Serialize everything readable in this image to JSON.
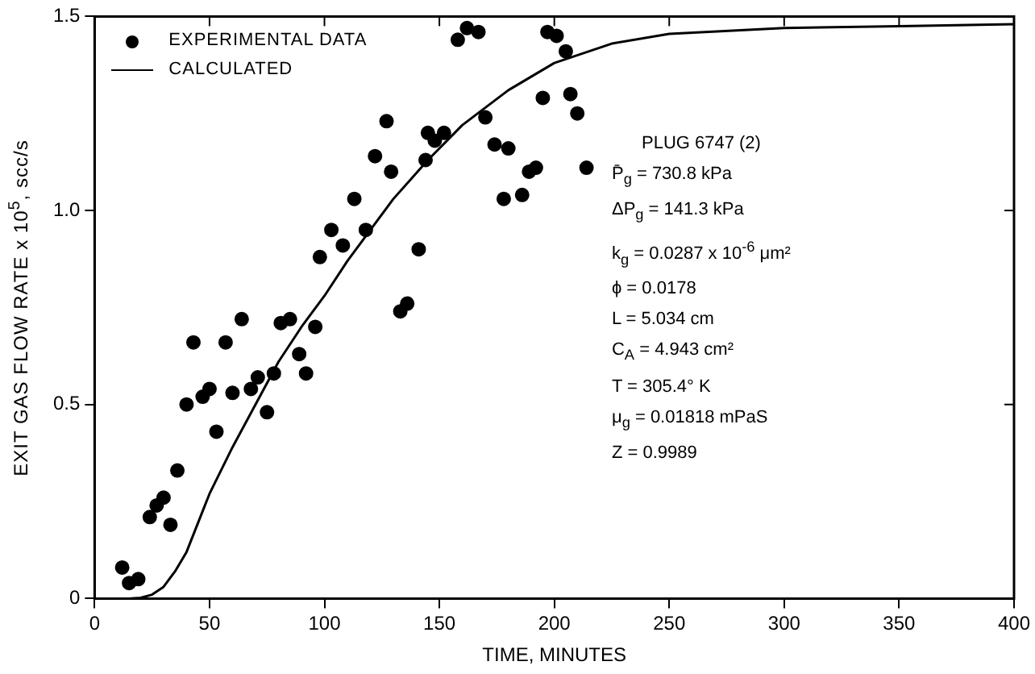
{
  "chart_data": {
    "type": "scatter",
    "xlabel": "TIME, MINUTES",
    "ylabel": "EXIT GAS FLOW RATE x 10$^{5}$, scc/s",
    "xlim": [
      0,
      400
    ],
    "xticks": [
      0,
      50,
      100,
      150,
      200,
      250,
      300,
      350,
      400
    ],
    "ylim": [
      0,
      1.5
    ],
    "yticks": [
      0,
      0.5,
      {
        "value": 1,
        "label": "1.0"
      },
      1.5
    ],
    "legend": "top left",
    "grid": false,
    "series": [
      {
        "name": "EXPERIMENTAL DATA",
        "marker": "circle",
        "color": "#000000",
        "x": [
          12,
          15,
          19,
          24,
          27,
          30,
          33,
          36,
          40,
          43,
          47,
          50,
          53,
          57,
          60,
          64,
          68,
          71,
          75,
          78,
          81,
          85,
          89,
          92,
          96,
          98,
          103,
          108,
          113,
          118,
          122,
          127,
          129,
          133,
          136,
          141,
          144,
          145,
          148,
          152,
          158,
          162,
          167,
          170,
          174,
          178,
          180,
          186,
          189,
          192,
          195,
          197,
          201,
          205,
          207,
          210,
          214
        ],
        "values": [
          0.08,
          0.04,
          0.05,
          0.21,
          0.24,
          0.26,
          0.19,
          0.33,
          0.5,
          0.66,
          0.52,
          0.54,
          0.43,
          0.66,
          0.53,
          0.72,
          0.54,
          0.57,
          0.48,
          0.58,
          0.71,
          0.72,
          0.63,
          0.58,
          0.7,
          0.88,
          0.95,
          0.91,
          1.03,
          0.95,
          1.14,
          1.23,
          1.1,
          0.74,
          0.76,
          0.9,
          1.13,
          1.2,
          1.18,
          1.2,
          1.44,
          1.47,
          1.46,
          1.24,
          1.17,
          1.03,
          1.16,
          1.04,
          1.1,
          1.11,
          1.29,
          1.46,
          1.45,
          1.41,
          1.3,
          1.25,
          1.11
        ]
      },
      {
        "name": "CALCULATED",
        "type": "line",
        "marker": "none",
        "line_style": "solid",
        "color": "#000000",
        "x": [
          0,
          15,
          20,
          25,
          30,
          35,
          40,
          50,
          60,
          70,
          80,
          90,
          100,
          110,
          120,
          130,
          145,
          160,
          180,
          200,
          225,
          250,
          300,
          350,
          400
        ],
        "values": [
          0,
          0,
          0.002,
          0.01,
          0.03,
          0.07,
          0.12,
          0.27,
          0.39,
          0.5,
          0.61,
          0.7,
          0.78,
          0.87,
          0.95,
          1.03,
          1.13,
          1.22,
          1.31,
          1.38,
          1.43,
          1.455,
          1.47,
          1.475,
          1.48
        ]
      }
    ],
    "annotations": [
      "PLUG 6747 (2)",
      "P̄$_{g}$ = 730.8 kPa",
      "ΔP$_{g}$ = 141.3 kPa",
      "k$_{g}$ = 0.0287 x 10$^{-6}$ μm²",
      "ϕ = 0.0178",
      "L = 5.034 cm",
      "C$_{A}$ = 4.943 cm²",
      "T = 305.4° K",
      "μ$_{g}$ = 0.01818 mPaS",
      "Z = 0.9989"
    ]
  }
}
